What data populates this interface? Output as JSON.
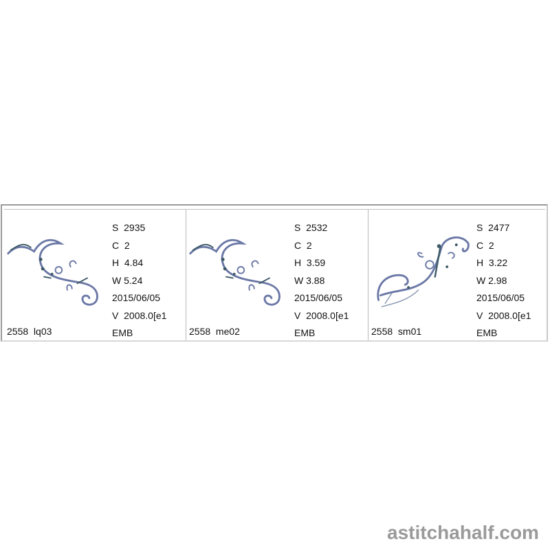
{
  "designs": [
    {
      "name": "2558  lq03",
      "stitches": "S  2935",
      "colors": "C  2",
      "height": "H  4.84",
      "width": "W 5.24",
      "date": "2015/06/05",
      "version": "V  2008.0[e1",
      "format": "EMB"
    },
    {
      "name": "2558  me02",
      "stitches": "S  2532",
      "colors": "C  2",
      "height": "H  3.59",
      "width": "W 3.88",
      "date": "2015/06/05",
      "version": "V  2008.0[e1",
      "format": "EMB"
    },
    {
      "name": "2558  sm01",
      "stitches": "S  2477",
      "colors": "C  2",
      "height": "H  3.22",
      "width": "W 2.98",
      "date": "2015/06/05",
      "version": "V  2008.0[e1",
      "format": "EMB"
    }
  ],
  "colors": {
    "thread_blue": "#6b78a6",
    "thread_teal": "#3e5a66",
    "border": "#9a9a9a"
  },
  "watermark": "astitchahalf.com"
}
